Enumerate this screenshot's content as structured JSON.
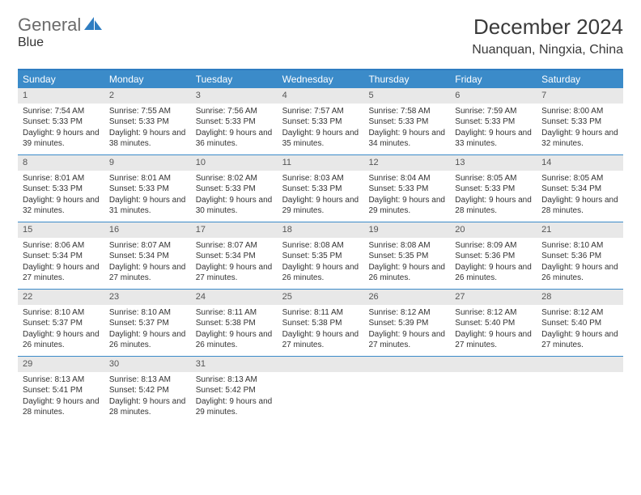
{
  "brand": {
    "part1": "General",
    "part2": "Blue"
  },
  "title": "December 2024",
  "location": "Nuanquan, Ningxia, China",
  "colors": {
    "header_bg": "#3b8bc9",
    "header_text": "#ffffff",
    "daynum_bg": "#e8e8e8",
    "border": "#3b8bc9",
    "brand_gray": "#6b6b6b",
    "brand_blue": "#2f7dc1"
  },
  "day_names": [
    "Sunday",
    "Monday",
    "Tuesday",
    "Wednesday",
    "Thursday",
    "Friday",
    "Saturday"
  ],
  "weeks": [
    [
      {
        "n": "1",
        "sr": "7:54 AM",
        "ss": "5:33 PM",
        "dl": "9 hours and 39 minutes."
      },
      {
        "n": "2",
        "sr": "7:55 AM",
        "ss": "5:33 PM",
        "dl": "9 hours and 38 minutes."
      },
      {
        "n": "3",
        "sr": "7:56 AM",
        "ss": "5:33 PM",
        "dl": "9 hours and 36 minutes."
      },
      {
        "n": "4",
        "sr": "7:57 AM",
        "ss": "5:33 PM",
        "dl": "9 hours and 35 minutes."
      },
      {
        "n": "5",
        "sr": "7:58 AM",
        "ss": "5:33 PM",
        "dl": "9 hours and 34 minutes."
      },
      {
        "n": "6",
        "sr": "7:59 AM",
        "ss": "5:33 PM",
        "dl": "9 hours and 33 minutes."
      },
      {
        "n": "7",
        "sr": "8:00 AM",
        "ss": "5:33 PM",
        "dl": "9 hours and 32 minutes."
      }
    ],
    [
      {
        "n": "8",
        "sr": "8:01 AM",
        "ss": "5:33 PM",
        "dl": "9 hours and 32 minutes."
      },
      {
        "n": "9",
        "sr": "8:01 AM",
        "ss": "5:33 PM",
        "dl": "9 hours and 31 minutes."
      },
      {
        "n": "10",
        "sr": "8:02 AM",
        "ss": "5:33 PM",
        "dl": "9 hours and 30 minutes."
      },
      {
        "n": "11",
        "sr": "8:03 AM",
        "ss": "5:33 PM",
        "dl": "9 hours and 29 minutes."
      },
      {
        "n": "12",
        "sr": "8:04 AM",
        "ss": "5:33 PM",
        "dl": "9 hours and 29 minutes."
      },
      {
        "n": "13",
        "sr": "8:05 AM",
        "ss": "5:33 PM",
        "dl": "9 hours and 28 minutes."
      },
      {
        "n": "14",
        "sr": "8:05 AM",
        "ss": "5:34 PM",
        "dl": "9 hours and 28 minutes."
      }
    ],
    [
      {
        "n": "15",
        "sr": "8:06 AM",
        "ss": "5:34 PM",
        "dl": "9 hours and 27 minutes."
      },
      {
        "n": "16",
        "sr": "8:07 AM",
        "ss": "5:34 PM",
        "dl": "9 hours and 27 minutes."
      },
      {
        "n": "17",
        "sr": "8:07 AM",
        "ss": "5:34 PM",
        "dl": "9 hours and 27 minutes."
      },
      {
        "n": "18",
        "sr": "8:08 AM",
        "ss": "5:35 PM",
        "dl": "9 hours and 26 minutes."
      },
      {
        "n": "19",
        "sr": "8:08 AM",
        "ss": "5:35 PM",
        "dl": "9 hours and 26 minutes."
      },
      {
        "n": "20",
        "sr": "8:09 AM",
        "ss": "5:36 PM",
        "dl": "9 hours and 26 minutes."
      },
      {
        "n": "21",
        "sr": "8:10 AM",
        "ss": "5:36 PM",
        "dl": "9 hours and 26 minutes."
      }
    ],
    [
      {
        "n": "22",
        "sr": "8:10 AM",
        "ss": "5:37 PM",
        "dl": "9 hours and 26 minutes."
      },
      {
        "n": "23",
        "sr": "8:10 AM",
        "ss": "5:37 PM",
        "dl": "9 hours and 26 minutes."
      },
      {
        "n": "24",
        "sr": "8:11 AM",
        "ss": "5:38 PM",
        "dl": "9 hours and 26 minutes."
      },
      {
        "n": "25",
        "sr": "8:11 AM",
        "ss": "5:38 PM",
        "dl": "9 hours and 27 minutes."
      },
      {
        "n": "26",
        "sr": "8:12 AM",
        "ss": "5:39 PM",
        "dl": "9 hours and 27 minutes."
      },
      {
        "n": "27",
        "sr": "8:12 AM",
        "ss": "5:40 PM",
        "dl": "9 hours and 27 minutes."
      },
      {
        "n": "28",
        "sr": "8:12 AM",
        "ss": "5:40 PM",
        "dl": "9 hours and 27 minutes."
      }
    ],
    [
      {
        "n": "29",
        "sr": "8:13 AM",
        "ss": "5:41 PM",
        "dl": "9 hours and 28 minutes."
      },
      {
        "n": "30",
        "sr": "8:13 AM",
        "ss": "5:42 PM",
        "dl": "9 hours and 28 minutes."
      },
      {
        "n": "31",
        "sr": "8:13 AM",
        "ss": "5:42 PM",
        "dl": "9 hours and 29 minutes."
      },
      null,
      null,
      null,
      null
    ]
  ],
  "labels": {
    "sunrise": "Sunrise:",
    "sunset": "Sunset:",
    "daylight": "Daylight:"
  }
}
